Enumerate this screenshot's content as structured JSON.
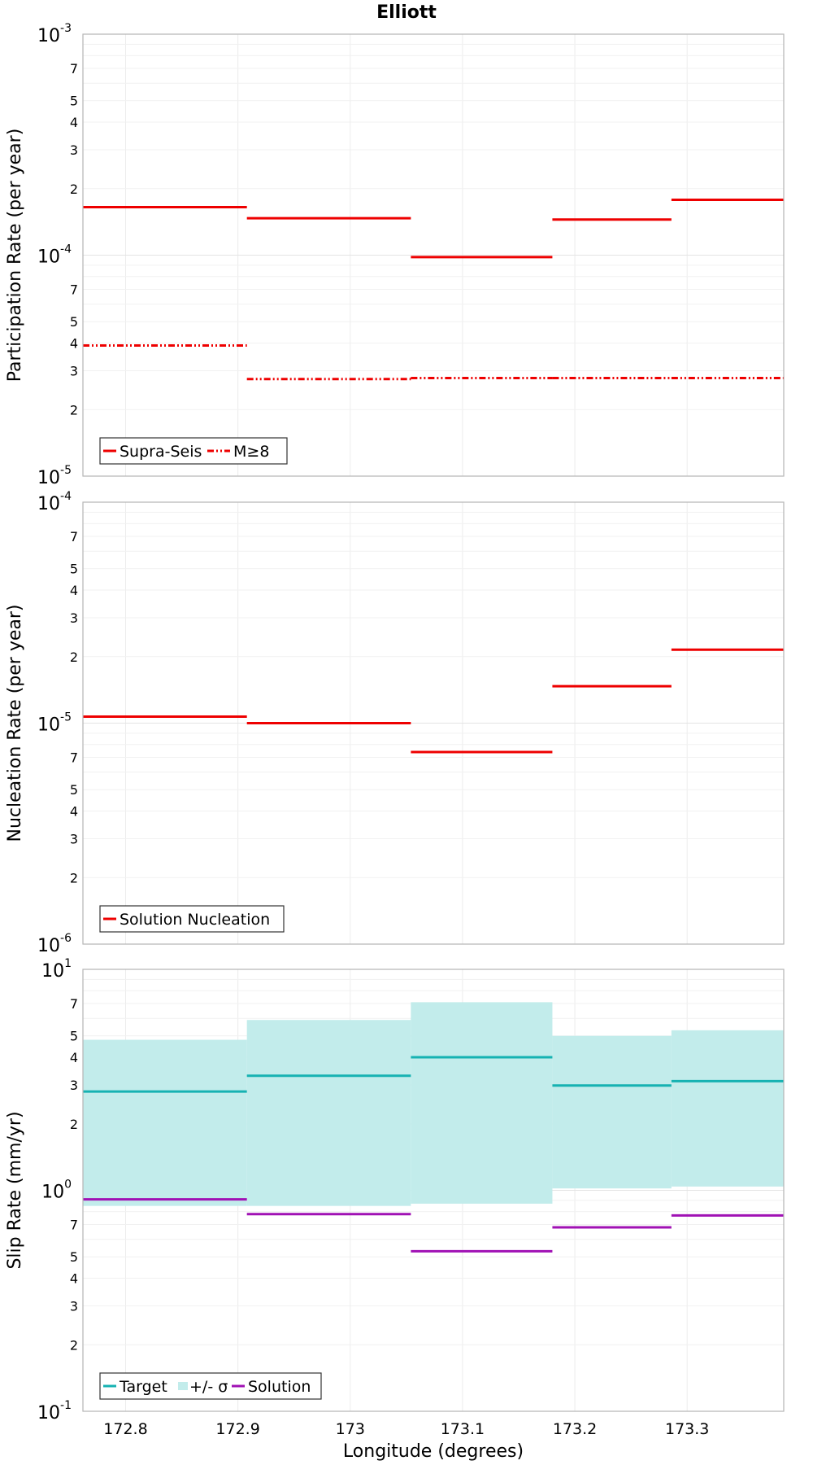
{
  "title": "Elliott",
  "xlabel": "Longitude (degrees)",
  "x_ticks": [
    "172.8",
    "172.9",
    "173",
    "173.1",
    "173.2",
    "173.3"
  ],
  "colors": {
    "supra_seis": "#ee0000",
    "target": "#16b2b2",
    "sigma_band": "#c2eceb",
    "solution_slip": "#a011b4"
  },
  "chart_data": [
    {
      "type": "line",
      "name": "participation",
      "ylabel": "Participation Rate (per year)",
      "yscale": "log",
      "xlim": [
        172.762,
        173.386
      ],
      "ylim": [
        1e-05,
        0.001
      ],
      "y_major_ticks": [
        {
          "base": "10",
          "exp": "-5"
        },
        {
          "base": "10",
          "exp": "-4"
        },
        {
          "base": "10",
          "exp": "-3"
        }
      ],
      "y_minor_labels": [
        "2",
        "3",
        "4",
        "5",
        "7"
      ],
      "legend": "bottom-left",
      "bins": [
        [
          172.762,
          172.908
        ],
        [
          172.908,
          173.054
        ],
        [
          173.054,
          173.18
        ],
        [
          173.18,
          173.286
        ],
        [
          173.286,
          173.386
        ]
      ],
      "series": [
        {
          "name": "Supra-Seis",
          "style": "solid",
          "values": [
            0.000165,
            0.000147,
            9.8e-05,
            0.000145,
            0.000178
          ]
        },
        {
          "name": "M≥8",
          "style": "dashdot",
          "values": [
            3.9e-05,
            2.75e-05,
            2.78e-05,
            2.78e-05,
            2.78e-05
          ]
        }
      ]
    },
    {
      "type": "line",
      "name": "nucleation",
      "ylabel": "Nucleation Rate (per year)",
      "yscale": "log",
      "xlim": [
        172.762,
        173.386
      ],
      "ylim": [
        1e-06,
        0.0001
      ],
      "y_major_ticks": [
        {
          "base": "10",
          "exp": "-6"
        },
        {
          "base": "10",
          "exp": "-5"
        },
        {
          "base": "10",
          "exp": "-4"
        }
      ],
      "y_minor_labels": [
        "2",
        "3",
        "4",
        "5",
        "7"
      ],
      "legend": "bottom-left",
      "bins": [
        [
          172.762,
          172.908
        ],
        [
          172.908,
          173.054
        ],
        [
          173.054,
          173.18
        ],
        [
          173.18,
          173.286
        ],
        [
          173.286,
          173.386
        ]
      ],
      "series": [
        {
          "name": "Solution Nucleation",
          "style": "solid",
          "values": [
            1.07e-05,
            1e-05,
            7.4e-06,
            1.47e-05,
            2.15e-05
          ]
        }
      ]
    },
    {
      "type": "line",
      "name": "slip",
      "ylabel": "Slip Rate (mm/yr)",
      "yscale": "log",
      "xlim": [
        172.762,
        173.386
      ],
      "ylim": [
        0.1,
        10
      ],
      "y_major_ticks": [
        {
          "base": "10",
          "exp": "-1"
        },
        {
          "base": "10",
          "exp": "0"
        },
        {
          "base": "10",
          "exp": "1"
        }
      ],
      "y_minor_labels": [
        "2",
        "3",
        "4",
        "5",
        "7"
      ],
      "legend": "bottom-left",
      "bins": [
        [
          172.762,
          172.908
        ],
        [
          172.908,
          173.054
        ],
        [
          173.054,
          173.18
        ],
        [
          173.18,
          173.286
        ],
        [
          173.286,
          173.386
        ]
      ],
      "series": [
        {
          "name": "Target",
          "style": "solid",
          "values": [
            2.8,
            3.3,
            4.0,
            2.98,
            3.12
          ]
        },
        {
          "name": "+/- σ",
          "style": "band",
          "lower": [
            0.85,
            0.85,
            0.87,
            1.02,
            1.04
          ],
          "upper": [
            4.8,
            5.9,
            7.1,
            5.0,
            5.3
          ]
        },
        {
          "name": "Solution",
          "style": "solid",
          "values": [
            0.91,
            0.78,
            0.53,
            0.68,
            0.77
          ]
        }
      ]
    }
  ]
}
